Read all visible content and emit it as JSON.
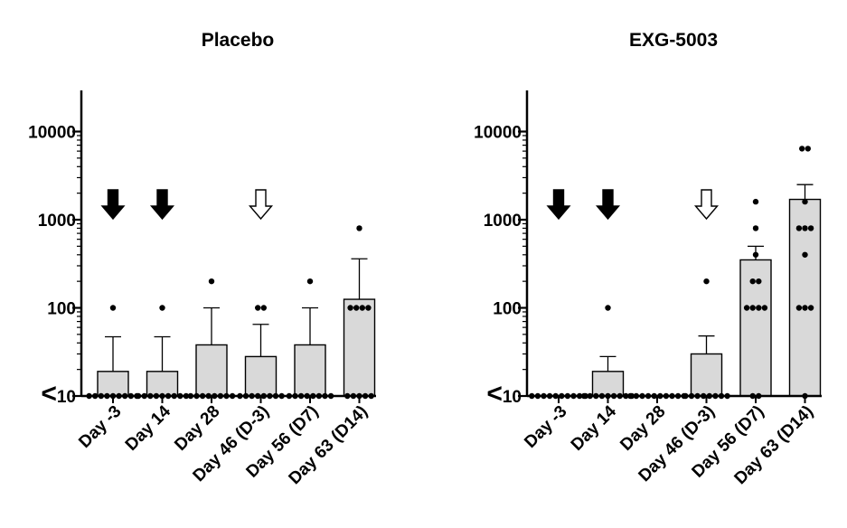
{
  "chart_data": [
    {
      "type": "bar",
      "title": "Placebo",
      "xlabel": "",
      "ylabel": "",
      "yscale": "log",
      "ylim": [
        10,
        30000
      ],
      "y_ticks": [
        {
          "value": 10,
          "prefix": "<",
          "text": "10"
        },
        {
          "value": 100,
          "prefix": "",
          "text": "100"
        },
        {
          "value": 1000,
          "prefix": "",
          "text": "1000"
        },
        {
          "value": 10000,
          "prefix": "",
          "text": "10000"
        }
      ],
      "categories": [
        "Day -3",
        "Day 14",
        "Day 28",
        "Day 46 (D-3)",
        "Day 56 (D7)",
        "Day 63 (D14)"
      ],
      "values": [
        19,
        19,
        38,
        28,
        38,
        125
      ],
      "error_upper": [
        47,
        47,
        100,
        65,
        100,
        360
      ],
      "points": [
        [
          100,
          10,
          10,
          10,
          10,
          10,
          10,
          10,
          10,
          10
        ],
        [
          100,
          10,
          10,
          10,
          10,
          10,
          10,
          10,
          10,
          10
        ],
        [
          200,
          10,
          10,
          10,
          10,
          10,
          10,
          10,
          10
        ],
        [
          100,
          100,
          10,
          10,
          10,
          10,
          10,
          10,
          10,
          10
        ],
        [
          200,
          10,
          10,
          10,
          10,
          10,
          10,
          10,
          10
        ],
        [
          800,
          100,
          100,
          100,
          100,
          10,
          10,
          10,
          10,
          10
        ]
      ],
      "arrows": [
        {
          "category_index": 0,
          "style": "filled"
        },
        {
          "category_index": 1,
          "style": "filled"
        },
        {
          "category_index": 3,
          "style": "open"
        }
      ],
      "arrow_y": 1000,
      "bar_color": "#d9d9d9",
      "dot_color": "#000000",
      "grid": false
    },
    {
      "type": "bar",
      "title": "EXG-5003",
      "xlabel": "",
      "ylabel": "",
      "yscale": "log",
      "ylim": [
        10,
        30000
      ],
      "y_ticks": [
        {
          "value": 10,
          "prefix": "<",
          "text": "10"
        },
        {
          "value": 100,
          "prefix": "",
          "text": "100"
        },
        {
          "value": 1000,
          "prefix": "",
          "text": "1000"
        },
        {
          "value": 10000,
          "prefix": "",
          "text": "10000"
        }
      ],
      "categories": [
        "Day -3",
        "Day 14",
        "Day 28",
        "Day 46 (D-3)",
        "Day 56 (D7)",
        "Day 63 (D14)"
      ],
      "values": [
        10,
        19,
        10,
        30,
        350,
        1700
      ],
      "error_upper": [
        10,
        28,
        10,
        48,
        500,
        2500
      ],
      "points": [
        [
          10,
          10,
          10,
          10,
          10,
          10,
          10,
          10,
          10,
          10
        ],
        [
          100,
          10,
          10,
          10,
          10,
          10,
          10,
          10,
          10,
          10
        ],
        [
          10,
          10,
          10,
          10,
          10,
          10,
          10,
          10,
          10,
          10
        ],
        [
          200,
          10,
          10,
          10,
          10,
          10,
          10,
          10,
          10
        ],
        [
          1600,
          800,
          400,
          200,
          200,
          100,
          100,
          100,
          100,
          10,
          10
        ],
        [
          6400,
          6400,
          1600,
          800,
          800,
          800,
          400,
          100,
          100,
          100,
          10
        ]
      ],
      "arrows": [
        {
          "category_index": 0,
          "style": "filled"
        },
        {
          "category_index": 1,
          "style": "filled"
        },
        {
          "category_index": 3,
          "style": "open"
        }
      ],
      "arrow_y": 1000,
      "bar_color": "#d9d9d9",
      "dot_color": "#000000",
      "grid": false
    }
  ]
}
